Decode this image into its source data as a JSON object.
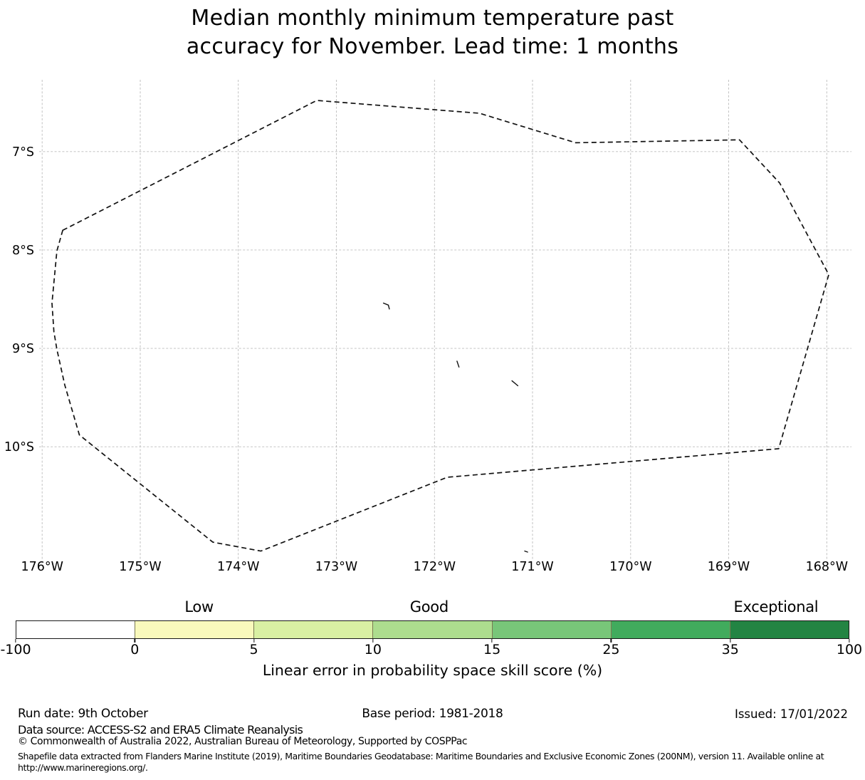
{
  "title": {
    "line1": "Median monthly minimum temperature past",
    "line2": "accuracy for November. Lead time: 1 months"
  },
  "chart_data": {
    "type": "map",
    "description": "Dashed EEZ boundary outline with small island marks (Tokelau region) on a lon/lat grid; no shaded skill cells visible inside the plot",
    "axes": {
      "grid": true,
      "x_range_deg": [
        -176.27,
        -167.77
      ],
      "y_range_deg": [
        -11.15,
        -6.27
      ],
      "x_ticks": [
        {
          "value": -176,
          "label": "176°W"
        },
        {
          "value": -175,
          "label": "175°W"
        },
        {
          "value": -174,
          "label": "174°W"
        },
        {
          "value": -173,
          "label": "173°W"
        },
        {
          "value": -172,
          "label": "172°W"
        },
        {
          "value": -171,
          "label": "171°W"
        },
        {
          "value": -170,
          "label": "170°W"
        },
        {
          "value": -169,
          "label": "169°W"
        },
        {
          "value": -168,
          "label": "168°W"
        }
      ],
      "y_ticks": [
        {
          "value": -7,
          "label": "7°S"
        },
        {
          "value": -8,
          "label": "8°S"
        },
        {
          "value": -9,
          "label": "9°S"
        },
        {
          "value": -10,
          "label": "10°S"
        }
      ]
    },
    "boundary_lonlat": [
      [
        -175.79,
        -7.8
      ],
      [
        -173.2,
        -6.48
      ],
      [
        -171.54,
        -6.61
      ],
      [
        -170.56,
        -6.91
      ],
      [
        -168.89,
        -6.88
      ],
      [
        -168.48,
        -7.32
      ],
      [
        -167.98,
        -8.25
      ],
      [
        -168.49,
        -10.02
      ],
      [
        -171.87,
        -10.31
      ],
      [
        -173.77,
        -11.06
      ],
      [
        -174.26,
        -10.97
      ],
      [
        -175.62,
        -9.88
      ],
      [
        -175.77,
        -9.37
      ],
      [
        -175.85,
        -9.01
      ],
      [
        -175.88,
        -8.83
      ],
      [
        -175.9,
        -8.54
      ],
      [
        -175.85,
        -8.01
      ]
    ],
    "islands_lonlat": [
      [
        [
          -172.52,
          -8.54
        ],
        [
          -172.47,
          -8.56
        ],
        [
          -172.46,
          -8.6
        ]
      ],
      [
        [
          -171.77,
          -9.13
        ],
        [
          -171.75,
          -9.19
        ]
      ],
      [
        [
          -171.21,
          -9.33
        ],
        [
          -171.15,
          -9.38
        ]
      ],
      [
        [
          -171.08,
          -11.06
        ],
        [
          -171.05,
          -11.07
        ]
      ]
    ],
    "colorbar": {
      "title": "Linear error in probability space skill score (%)",
      "tick_labels": [
        "-100",
        "0",
        "5",
        "10",
        "15",
        "25",
        "35",
        "100"
      ],
      "segment_colors": [
        "#ffffff",
        "#f9f9bc",
        "#d9f0a3",
        "#addd8e",
        "#78c679",
        "#41ab5d",
        "#238443"
      ],
      "category_labels": [
        {
          "label": "Low",
          "position_pct": 22.0
        },
        {
          "label": "Good",
          "position_pct": 49.6
        },
        {
          "label": "Exceptional",
          "position_pct": 91.2
        }
      ]
    }
  },
  "footer": {
    "run_date": "Run date: 9th October",
    "base_period": "Base period: 1981-2018",
    "issued": "Issued: 17/01/2022",
    "data_source": "Data source: ACCESS-S2 and ERA5 Climate Reanalysis",
    "copyright": "© Commonwealth of Australia 2022, Australian Bureau of Meteorology, Supported by COSPPac",
    "shapefile_line1": "Shapefile data extracted from Flanders Marine Institute (2019), Maritime Boundaries Geodatabase: Maritime Boundaries and Exclusive Economic Zones (200NM), version 11. Available online at",
    "shapefile_line2": "http://www.marineregions.org/."
  }
}
